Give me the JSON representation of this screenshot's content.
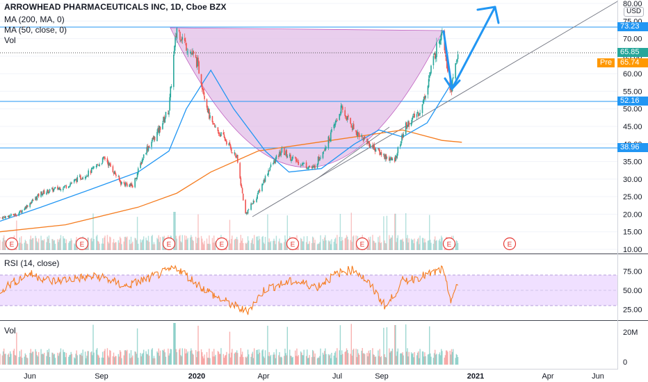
{
  "header": {
    "title": "ARROWHEAD PHARMACEUTICALS INC, 1D, Cboe BZX",
    "ma200": "MA (200, MA, 0)",
    "ma50": "MA (50, close, 0)",
    "vol": "Vol"
  },
  "price_axis": {
    "currency": "USD",
    "ticks": [
      "10.00",
      "15.00",
      "20.00",
      "25.00",
      "30.00",
      "35.00",
      "40.00",
      "45.00",
      "50.00",
      "55.00",
      "60.00",
      "65.00",
      "70.00",
      "75.00",
      "80.00"
    ]
  },
  "price_tags": {
    "level_high": "73.23",
    "last": "65.85",
    "pre_label": "Pre",
    "pre_value": "65.74",
    "level_mid": "52.16",
    "level_low": "38.96"
  },
  "rsi": {
    "label": "RSI (14, close)",
    "ticks": [
      "25.00",
      "50.00",
      "75.00"
    ]
  },
  "vol_pane": {
    "label": "Vol",
    "ticks": [
      "20M",
      "0"
    ]
  },
  "time_axis": {
    "labels": [
      "Jun",
      "Sep",
      "2020",
      "Apr",
      "Jul",
      "Sep",
      "2021",
      "Apr",
      "Jun"
    ]
  },
  "events": {
    "marker": "E",
    "count": 8
  },
  "colors": {
    "up": "#26a69a",
    "down": "#ef5350",
    "ma200": "#f57c1f",
    "ma50": "#2196f3",
    "level_line": "#2196f3",
    "cup_fill": "#e1bee7",
    "rsi_line": "#f57c1f",
    "rsi_band": "#f0e0ff",
    "arrow": "#2196f3",
    "trendline": "#787b86",
    "event": "#e53935"
  },
  "chart_data": {
    "type": "candlestick",
    "title": "ARROWHEAD PHARMACEUTICALS INC, 1D, Cboe BZX",
    "y_range": [
      10,
      80
    ],
    "x_range": [
      "2019-05-10",
      "2021-06-30"
    ],
    "horizontal_levels": [
      73.23,
      52.16,
      38.96
    ],
    "last_price": 65.85,
    "premarket_price": 65.74,
    "close_path": [
      [
        "2019-05-10",
        19
      ],
      [
        "2019-06-01",
        20
      ],
      [
        "2019-07-01",
        26
      ],
      [
        "2019-08-01",
        28
      ],
      [
        "2019-09-01",
        32
      ],
      [
        "2019-09-20",
        36
      ],
      [
        "2019-10-10",
        29
      ],
      [
        "2019-10-25",
        28
      ],
      [
        "2019-11-10",
        38
      ],
      [
        "2019-11-25",
        43
      ],
      [
        "2019-12-10",
        50
      ],
      [
        "2019-12-16",
        65
      ],
      [
        "2019-12-20",
        73
      ],
      [
        "2020-01-01",
        68
      ],
      [
        "2020-01-15",
        63
      ],
      [
        "2020-02-01",
        46
      ],
      [
        "2020-02-20",
        41
      ],
      [
        "2020-03-05",
        36
      ],
      [
        "2020-03-16",
        20
      ],
      [
        "2020-03-30",
        25
      ],
      [
        "2020-04-15",
        33
      ],
      [
        "2020-05-01",
        38
      ],
      [
        "2020-05-20",
        35
      ],
      [
        "2020-06-10",
        33
      ],
      [
        "2020-07-01",
        42
      ],
      [
        "2020-07-15",
        50
      ],
      [
        "2020-08-01",
        44
      ],
      [
        "2020-08-20",
        40
      ],
      [
        "2020-09-05",
        37
      ],
      [
        "2020-09-20",
        35
      ],
      [
        "2020-10-05",
        45
      ],
      [
        "2020-10-25",
        50
      ],
      [
        "2020-11-10",
        65
      ],
      [
        "2020-11-20",
        73
      ],
      [
        "2020-12-01",
        55
      ],
      [
        "2020-12-10",
        65.85
      ]
    ],
    "ma200": [
      [
        "2019-05-10",
        15
      ],
      [
        "2019-08-01",
        17
      ],
      [
        "2019-11-01",
        22
      ],
      [
        "2019-12-20",
        26
      ],
      [
        "2020-02-01",
        32
      ],
      [
        "2020-04-01",
        38
      ],
      [
        "2020-06-01",
        40
      ],
      [
        "2020-08-01",
        42
      ],
      [
        "2020-10-01",
        44
      ],
      [
        "2020-11-20",
        41
      ],
      [
        "2020-12-15",
        40.5
      ]
    ],
    "ma50": [
      [
        "2019-05-10",
        18
      ],
      [
        "2019-07-01",
        22
      ],
      [
        "2019-09-01",
        27
      ],
      [
        "2019-11-01",
        32
      ],
      [
        "2019-12-10",
        38
      ],
      [
        "2020-01-01",
        50
      ],
      [
        "2020-02-01",
        61
      ],
      [
        "2020-03-01",
        50
      ],
      [
        "2020-04-10",
        38
      ],
      [
        "2020-05-10",
        32
      ],
      [
        "2020-06-20",
        33
      ],
      [
        "2020-08-01",
        40
      ],
      [
        "2020-09-01",
        44
      ],
      [
        "2020-10-01",
        42
      ],
      [
        "2020-11-01",
        46
      ],
      [
        "2020-12-01",
        57
      ]
    ],
    "rsi": {
      "range": [
        0,
        100
      ],
      "band": [
        30,
        70
      ],
      "values": [
        [
          "2019-05-10",
          50
        ],
        [
          "2019-06-15",
          72
        ],
        [
          "2019-07-15",
          62
        ],
        [
          "2019-08-15",
          66
        ],
        [
          "2019-09-15",
          68
        ],
        [
          "2019-10-15",
          55
        ],
        [
          "2019-11-15",
          66
        ],
        [
          "2019-12-20",
          80
        ],
        [
          "2020-01-15",
          58
        ],
        [
          "2020-02-10",
          40
        ],
        [
          "2020-03-01",
          30
        ],
        [
          "2020-03-18",
          22
        ],
        [
          "2020-04-10",
          52
        ],
        [
          "2020-05-15",
          62
        ],
        [
          "2020-06-15",
          55
        ],
        [
          "2020-07-10",
          72
        ],
        [
          "2020-08-01",
          78
        ],
        [
          "2020-08-20",
          58
        ],
        [
          "2020-09-10",
          28
        ],
        [
          "2020-10-01",
          62
        ],
        [
          "2020-11-01",
          70
        ],
        [
          "2020-11-20",
          77
        ],
        [
          "2020-12-01",
          38
        ],
        [
          "2020-12-10",
          56
        ]
      ]
    }
  }
}
